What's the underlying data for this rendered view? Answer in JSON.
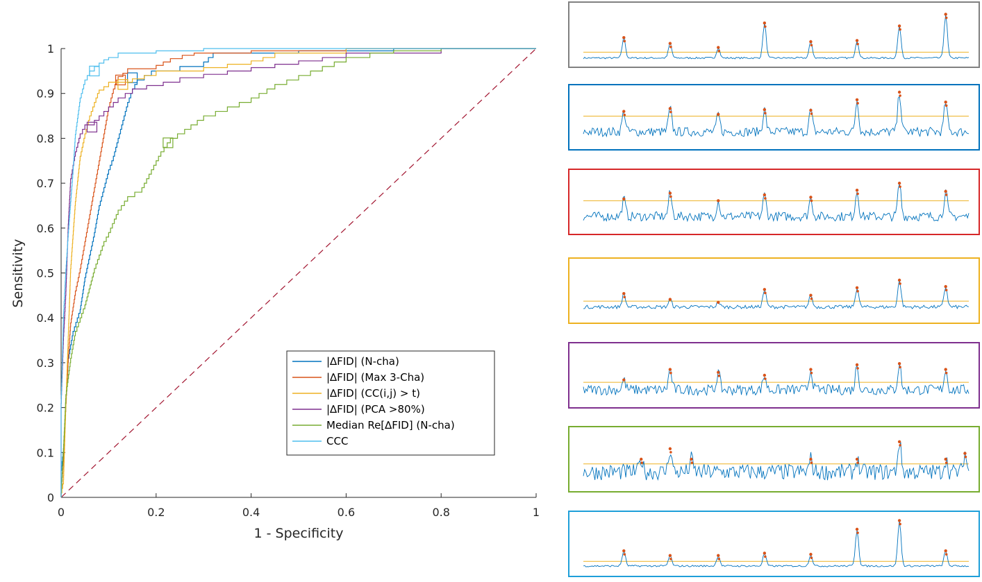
{
  "chart_data": [
    {
      "type": "line",
      "title": "",
      "xlabel": "1 - Specificity",
      "ylabel": "Sensitivity",
      "xlim": [
        0,
        1
      ],
      "ylim": [
        0,
        1
      ],
      "x_ticks": [
        "0",
        "0.2",
        "0.4",
        "0.6",
        "0.8",
        "1"
      ],
      "y_ticks": [
        "0",
        "0.1",
        "0.2",
        "0.3",
        "0.4",
        "0.5",
        "0.6",
        "0.7",
        "0.8",
        "0.9",
        "1"
      ],
      "legend_position": "bottom-right",
      "reference_line": {
        "name": "chance",
        "color": "#A2142F",
        "style": "dashed",
        "points": [
          [
            0,
            0
          ],
          [
            1,
            1
          ]
        ]
      },
      "series": [
        {
          "name": "|∆FID| (N-cha)",
          "color": "#0072BD",
          "operating_point": [
            0.15,
            0.935
          ],
          "points": [
            [
              0,
              0
            ],
            [
              0,
              0.05
            ],
            [
              0.005,
              0.1
            ],
            [
              0.01,
              0.2
            ],
            [
              0.015,
              0.3
            ],
            [
              0.025,
              0.36
            ],
            [
              0.04,
              0.41
            ],
            [
              0.05,
              0.48
            ],
            [
              0.06,
              0.53
            ],
            [
              0.07,
              0.58
            ],
            [
              0.08,
              0.64
            ],
            [
              0.09,
              0.68
            ],
            [
              0.1,
              0.72
            ],
            [
              0.11,
              0.75
            ],
            [
              0.12,
              0.79
            ],
            [
              0.13,
              0.83
            ],
            [
              0.14,
              0.87
            ],
            [
              0.15,
              0.9
            ],
            [
              0.16,
              0.92
            ],
            [
              0.19,
              0.94
            ],
            [
              0.25,
              0.95
            ],
            [
              0.3,
              0.96
            ],
            [
              0.32,
              0.98
            ],
            [
              0.5,
              0.99
            ],
            [
              0.7,
              0.995
            ],
            [
              1,
              1
            ]
          ]
        },
        {
          "name": "|∆FID| (Max 3-Cha)",
          "color": "#D95319",
          "operating_point": [
            0.125,
            0.93
          ],
          "points": [
            [
              0,
              0
            ],
            [
              0.005,
              0.08
            ],
            [
              0.01,
              0.2
            ],
            [
              0.015,
              0.3
            ],
            [
              0.02,
              0.38
            ],
            [
              0.03,
              0.45
            ],
            [
              0.04,
              0.5
            ],
            [
              0.05,
              0.56
            ],
            [
              0.06,
              0.62
            ],
            [
              0.07,
              0.68
            ],
            [
              0.08,
              0.74
            ],
            [
              0.09,
              0.8
            ],
            [
              0.1,
              0.86
            ],
            [
              0.11,
              0.9
            ],
            [
              0.12,
              0.93
            ],
            [
              0.14,
              0.945
            ],
            [
              0.2,
              0.955
            ],
            [
              0.23,
              0.97
            ],
            [
              0.28,
              0.985
            ],
            [
              0.4,
              0.99
            ],
            [
              0.6,
              0.995
            ],
            [
              1,
              1
            ]
          ]
        },
        {
          "name": "|∆FID| (CC(i,j) > t)",
          "color": "#EDB120",
          "operating_point": [
            0.13,
            0.92
          ],
          "points": [
            [
              0,
              0
            ],
            [
              0.005,
              0.03
            ],
            [
              0.01,
              0.2
            ],
            [
              0.015,
              0.35
            ],
            [
              0.02,
              0.5
            ],
            [
              0.03,
              0.65
            ],
            [
              0.04,
              0.75
            ],
            [
              0.05,
              0.8
            ],
            [
              0.06,
              0.84
            ],
            [
              0.07,
              0.87
            ],
            [
              0.08,
              0.9
            ],
            [
              0.1,
              0.915
            ],
            [
              0.15,
              0.925
            ],
            [
              0.2,
              0.94
            ],
            [
              0.3,
              0.95
            ],
            [
              0.4,
              0.965
            ],
            [
              0.45,
              0.98
            ],
            [
              0.6,
              0.99
            ],
            [
              1,
              1
            ]
          ]
        },
        {
          "name": "|∆FID| (PCA >80%)",
          "color": "#7E2F8E",
          "operating_point": [
            0.065,
            0.825
          ],
          "points": [
            [
              0,
              0
            ],
            [
              0,
              0.2
            ],
            [
              0.005,
              0.35
            ],
            [
              0.01,
              0.45
            ],
            [
              0.015,
              0.6
            ],
            [
              0.02,
              0.7
            ],
            [
              0.03,
              0.76
            ],
            [
              0.04,
              0.8
            ],
            [
              0.05,
              0.82
            ],
            [
              0.07,
              0.83
            ],
            [
              0.09,
              0.85
            ],
            [
              0.12,
              0.88
            ],
            [
              0.15,
              0.9
            ],
            [
              0.18,
              0.91
            ],
            [
              0.25,
              0.925
            ],
            [
              0.3,
              0.935
            ],
            [
              0.4,
              0.95
            ],
            [
              0.5,
              0.965
            ],
            [
              0.6,
              0.98
            ],
            [
              0.8,
              0.99
            ],
            [
              0.95,
              1
            ],
            [
              1,
              1
            ]
          ]
        },
        {
          "name": "Median Re[∆FID] (N-cha)",
          "color": "#77AC30",
          "operating_point": [
            0.225,
            0.79
          ],
          "points": [
            [
              0,
              0
            ],
            [
              0.005,
              0.1
            ],
            [
              0.01,
              0.22
            ],
            [
              0.02,
              0.3
            ],
            [
              0.03,
              0.36
            ],
            [
              0.05,
              0.42
            ],
            [
              0.07,
              0.5
            ],
            [
              0.09,
              0.56
            ],
            [
              0.1,
              0.58
            ],
            [
              0.12,
              0.63
            ],
            [
              0.14,
              0.66
            ],
            [
              0.17,
              0.68
            ],
            [
              0.19,
              0.72
            ],
            [
              0.21,
              0.76
            ],
            [
              0.23,
              0.79
            ],
            [
              0.26,
              0.81
            ],
            [
              0.3,
              0.84
            ],
            [
              0.35,
              0.86
            ],
            [
              0.4,
              0.88
            ],
            [
              0.45,
              0.91
            ],
            [
              0.5,
              0.93
            ],
            [
              0.55,
              0.95
            ],
            [
              0.6,
              0.97
            ],
            [
              0.7,
              0.99
            ],
            [
              0.8,
              0.995
            ],
            [
              1,
              1
            ]
          ]
        },
        {
          "name": "CCC",
          "color": "#4DBEEE",
          "operating_point": [
            0.07,
            0.95
          ],
          "points": [
            [
              0,
              0
            ],
            [
              0,
              0.2
            ],
            [
              0.005,
              0.4
            ],
            [
              0.01,
              0.5
            ],
            [
              0.015,
              0.58
            ],
            [
              0.02,
              0.65
            ],
            [
              0.025,
              0.72
            ],
            [
              0.03,
              0.8
            ],
            [
              0.04,
              0.88
            ],
            [
              0.05,
              0.92
            ],
            [
              0.06,
              0.94
            ],
            [
              0.08,
              0.96
            ],
            [
              0.1,
              0.975
            ],
            [
              0.12,
              0.98
            ],
            [
              0.2,
              0.99
            ],
            [
              0.3,
              0.995
            ],
            [
              0.5,
              1
            ],
            [
              1,
              1
            ]
          ]
        }
      ]
    },
    {
      "type": "line",
      "name": "signal-traces",
      "x": [
        0,
        1
      ],
      "panels": [
        {
          "color": "#808080",
          "threshold": 0.2,
          "noise": 0.015,
          "base": 0.1,
          "peaks": [
            [
              0.105,
              0.45
            ],
            [
              0.225,
              0.35
            ],
            [
              0.35,
              0.28
            ],
            [
              0.47,
              0.7
            ],
            [
              0.59,
              0.38
            ],
            [
              0.71,
              0.4
            ],
            [
              0.82,
              0.65
            ],
            [
              0.94,
              0.85
            ]
          ]
        },
        {
          "color": "#0072BD",
          "threshold": 0.52,
          "noise": 0.08,
          "base": 0.25,
          "peaks": [
            [
              0.105,
              0.6
            ],
            [
              0.225,
              0.65
            ],
            [
              0.35,
              0.55
            ],
            [
              0.47,
              0.63
            ],
            [
              0.59,
              0.62
            ],
            [
              0.71,
              0.8
            ],
            [
              0.82,
              0.93
            ],
            [
              0.94,
              0.76
            ]
          ]
        },
        {
          "color": "#D62728",
          "threshold": 0.52,
          "noise": 0.08,
          "base": 0.25,
          "peaks": [
            [
              0.105,
              0.55
            ],
            [
              0.225,
              0.65
            ],
            [
              0.35,
              0.52
            ],
            [
              0.47,
              0.62
            ],
            [
              0.59,
              0.58
            ],
            [
              0.71,
              0.7
            ],
            [
              0.82,
              0.82
            ],
            [
              0.94,
              0.68
            ]
          ]
        },
        {
          "color": "#EDB120",
          "threshold": 0.32,
          "noise": 0.03,
          "base": 0.22,
          "peaks": [
            [
              0.105,
              0.45
            ],
            [
              0.225,
              0.35
            ],
            [
              0.35,
              0.3
            ],
            [
              0.47,
              0.52
            ],
            [
              0.59,
              0.42
            ],
            [
              0.71,
              0.55
            ],
            [
              0.82,
              0.68
            ],
            [
              0.94,
              0.57
            ]
          ]
        },
        {
          "color": "#7E2F8E",
          "threshold": 0.38,
          "noise": 0.09,
          "base": 0.25,
          "peaks": [
            [
              0.105,
              0.42
            ],
            [
              0.225,
              0.6
            ],
            [
              0.35,
              0.55
            ],
            [
              0.47,
              0.5
            ],
            [
              0.59,
              0.6
            ],
            [
              0.71,
              0.68
            ],
            [
              0.82,
              0.7
            ],
            [
              0.94,
              0.6
            ]
          ]
        },
        {
          "color": "#77AC30",
          "threshold": 0.42,
          "noise": 0.14,
          "base": 0.28,
          "peaks": [
            [
              0.15,
              0.5
            ],
            [
              0.225,
              0.68
            ],
            [
              0.28,
              0.5
            ],
            [
              0.59,
              0.5
            ],
            [
              0.71,
              0.5
            ],
            [
              0.82,
              0.8
            ],
            [
              0.94,
              0.5
            ],
            [
              0.99,
              0.6
            ]
          ]
        },
        {
          "color": "#1E9FD9",
          "threshold": 0.2,
          "noise": 0.015,
          "base": 0.12,
          "peaks": [
            [
              0.105,
              0.38
            ],
            [
              0.225,
              0.3
            ],
            [
              0.35,
              0.3
            ],
            [
              0.47,
              0.34
            ],
            [
              0.59,
              0.32
            ],
            [
              0.71,
              0.75
            ],
            [
              0.82,
              0.9
            ],
            [
              0.94,
              0.38
            ]
          ]
        }
      ],
      "threshold_color": "#EDB120",
      "trace_color": "#0072BD",
      "marker_color": "#D95319"
    }
  ]
}
